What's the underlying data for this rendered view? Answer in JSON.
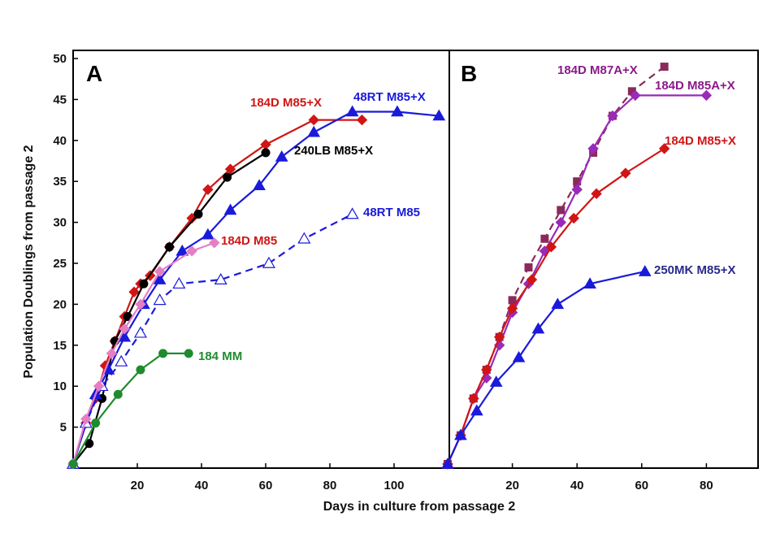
{
  "figure": {
    "ylabel": "Population Doublings from passage 2",
    "xlabel": "Days in culture from passage 2"
  },
  "chart_data": [
    {
      "panel": "A",
      "type": "line",
      "xlim": [
        0,
        115
      ],
      "ylim": [
        0,
        51
      ],
      "xticks": [
        20,
        40,
        60,
        80,
        100
      ],
      "yticks": [
        5,
        10,
        15,
        20,
        25,
        30,
        35,
        40,
        45,
        50
      ],
      "series": [
        {
          "name": "184D M85+X",
          "color": "#d11515",
          "marker": "diamond",
          "dash": false,
          "fill": true,
          "x": [
            0,
            4,
            7,
            10,
            13,
            16,
            19,
            21,
            24,
            30,
            37,
            42,
            49,
            60,
            75,
            90
          ],
          "y": [
            0.5,
            5.5,
            8.5,
            12.5,
            15.5,
            18.5,
            21.5,
            22.5,
            23.5,
            27,
            30.5,
            34,
            36.5,
            39.5,
            42.5,
            42.5
          ]
        },
        {
          "name": "240LB M85+X",
          "color": "#000000",
          "marker": "circle",
          "dash": false,
          "fill": true,
          "x": [
            0,
            5,
            9,
            13,
            17,
            22,
            30,
            39,
            48,
            60
          ],
          "y": [
            0.5,
            3,
            8.5,
            15.5,
            18.5,
            22.5,
            27,
            31,
            35.5,
            38.5
          ]
        },
        {
          "name": "48RT M85+X",
          "color": "#1a1adb",
          "marker": "triangle",
          "dash": false,
          "fill": true,
          "x": [
            0,
            7,
            11,
            16,
            22,
            27,
            34,
            42,
            49,
            58,
            65,
            75,
            87,
            101,
            114
          ],
          "y": [
            0.5,
            9,
            12,
            16,
            20,
            23,
            26.5,
            28.5,
            31.5,
            34.5,
            38,
            41,
            43.5,
            43.5,
            43
          ]
        },
        {
          "name": "48RT M85",
          "color": "#1a1adb",
          "marker": "triangle",
          "dash": true,
          "fill": false,
          "x": [
            0,
            4,
            9,
            15,
            21,
            27,
            33,
            46,
            61,
            72,
            87
          ],
          "y": [
            0.5,
            5.5,
            10,
            13,
            16.5,
            20.5,
            22.5,
            23,
            25,
            28,
            31
          ]
        },
        {
          "name": "184D M85",
          "color": "#e57ec4",
          "marker": "diamond",
          "dash": false,
          "fill": true,
          "x": [
            0,
            4,
            8,
            12,
            16,
            21,
            27,
            37,
            44
          ],
          "y": [
            0.5,
            6,
            10,
            14,
            17,
            20,
            24,
            26.5,
            27.5
          ]
        },
        {
          "name": "184 MM",
          "color": "#1e8c2e",
          "marker": "circle",
          "dash": false,
          "fill": true,
          "x": [
            0,
            7,
            14,
            21,
            28,
            36
          ],
          "y": [
            0.5,
            5.5,
            9,
            12,
            14,
            14
          ]
        }
      ],
      "annotations": [
        {
          "series": "184D M85+X",
          "text": "184D M85+X",
          "color": "#d11515"
        },
        {
          "series": "48RT M85+X",
          "text": "48RT M85+X",
          "color": "#1a1adb"
        },
        {
          "series": "240LB M85+X",
          "text": "240LB M85+X",
          "color": "#000000"
        },
        {
          "series": "48RT M85",
          "text": "48RT M85",
          "color": "#1a1adb"
        },
        {
          "series": "184D M85",
          "text": "184D M85",
          "color": "#d11515"
        },
        {
          "series": "184 MM",
          "text": "184 MM",
          "color": "#1e8c2e"
        }
      ]
    },
    {
      "panel": "B",
      "type": "line",
      "xlim": [
        0,
        96
      ],
      "ylim": [
        0,
        51
      ],
      "xticks": [
        20,
        40,
        60,
        80
      ],
      "yticks": [],
      "series": [
        {
          "name": "184D M87A+X",
          "color": "#8a2a5a",
          "marker": "square",
          "dash": true,
          "fill": true,
          "x": [
            0,
            4,
            8,
            12,
            16,
            20,
            25,
            30,
            35,
            40,
            45,
            51,
            57,
            67
          ],
          "y": [
            0.5,
            4,
            8.5,
            12,
            16,
            20.5,
            24.5,
            28,
            31.5,
            35,
            38.5,
            43,
            46,
            49
          ]
        },
        {
          "name": "184D M85A+X",
          "color": "#9a2ab8",
          "marker": "diamond",
          "dash": false,
          "fill": true,
          "x": [
            0,
            4,
            8,
            12,
            16,
            20,
            25,
            30,
            35,
            40,
            45,
            51,
            58,
            80
          ],
          "y": [
            0.5,
            4,
            8.5,
            11,
            15,
            19,
            22.5,
            26.5,
            30,
            34,
            39,
            43,
            45.5,
            45.5
          ]
        },
        {
          "name": "184D M85+X",
          "color": "#d11515",
          "marker": "diamond",
          "dash": false,
          "fill": true,
          "x": [
            0,
            4,
            8,
            12,
            16,
            20,
            26,
            32,
            39,
            46,
            55,
            67
          ],
          "y": [
            0.5,
            4,
            8.5,
            12,
            16,
            19.5,
            23,
            27,
            30.5,
            33.5,
            36,
            39
          ]
        },
        {
          "name": "250MK M85+X",
          "color": "#1a1adb",
          "marker": "triangle",
          "dash": false,
          "fill": true,
          "x": [
            0,
            4,
            9,
            15,
            22,
            28,
            34,
            44,
            61
          ],
          "y": [
            0.5,
            4,
            7,
            10.5,
            13.5,
            17,
            20,
            22.5,
            24
          ]
        }
      ],
      "annotations": [
        {
          "series": "184D M87A+X",
          "text": "184D M87A+X",
          "color": "#8a1a8a"
        },
        {
          "series": "184D M85A+X",
          "text": "184D M85A+X",
          "color": "#8a1a8a"
        },
        {
          "series": "184D M85+X",
          "text": "184D M85+X",
          "color": "#d11515"
        },
        {
          "series": "250MK M85+X",
          "text": "250MK M85+X",
          "color": "#2a2a8a"
        }
      ]
    }
  ]
}
